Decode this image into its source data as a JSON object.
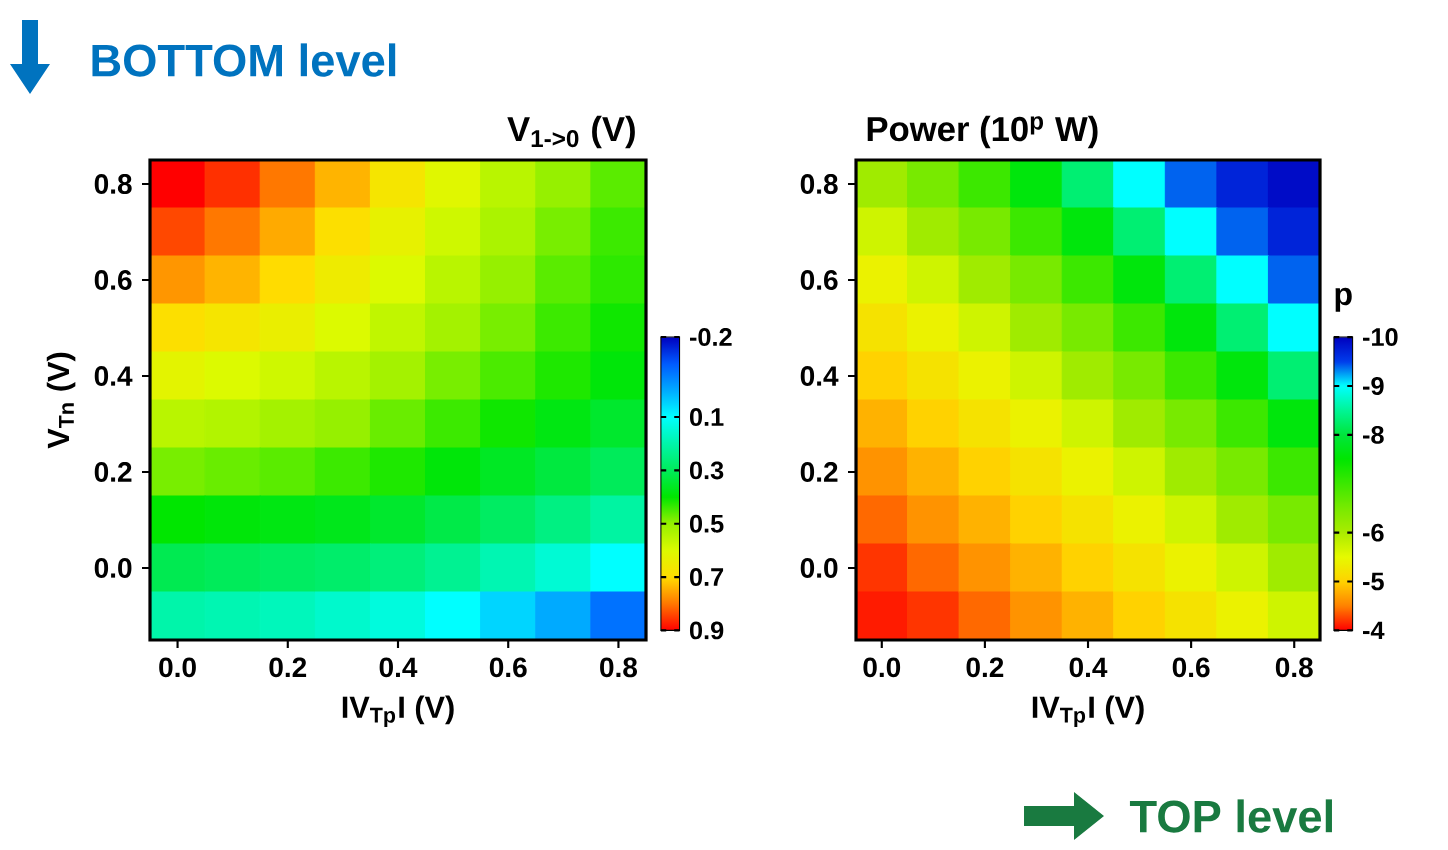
{
  "chart_data": [
    {
      "type": "heatmap",
      "title": "V$_{1->0}$ (V)",
      "xlabel": "IV$_{Tp}$I (V)",
      "ylabel": "V$_{Tn}$ (V)",
      "annotations": [
        "BOTTOM level"
      ],
      "categories": [
        "0.0",
        null,
        "0.2",
        null,
        "0.4",
        null,
        "0.6",
        null,
        "0.8"
      ],
      "y_categories": [
        "0.8",
        null,
        "0.6",
        null,
        "0.4",
        null,
        "0.2",
        null,
        "0.0",
        null
      ],
      "clim": [
        -0.2,
        0.9
      ],
      "cticks": [
        -0.2,
        0.1,
        0.3,
        0.5,
        0.7,
        0.9
      ],
      "cells": [
        [
          0.9,
          0.86,
          0.8,
          0.74,
          0.67,
          0.61,
          0.55,
          0.5,
          0.46
        ],
        [
          0.84,
          0.8,
          0.75,
          0.69,
          0.63,
          0.58,
          0.53,
          0.48,
          0.44
        ],
        [
          0.77,
          0.74,
          0.7,
          0.65,
          0.6,
          0.55,
          0.5,
          0.46,
          0.43
        ],
        [
          0.69,
          0.67,
          0.64,
          0.6,
          0.56,
          0.52,
          0.48,
          0.44,
          0.41
        ],
        [
          0.62,
          0.6,
          0.58,
          0.55,
          0.52,
          0.48,
          0.45,
          0.42,
          0.39
        ],
        [
          0.55,
          0.54,
          0.52,
          0.5,
          0.47,
          0.44,
          0.41,
          0.38,
          0.35
        ],
        [
          0.48,
          0.47,
          0.46,
          0.44,
          0.42,
          0.39,
          0.36,
          0.33,
          0.3
        ],
        [
          0.4,
          0.39,
          0.38,
          0.37,
          0.35,
          0.32,
          0.29,
          0.25,
          0.21
        ],
        [
          0.31,
          0.3,
          0.29,
          0.28,
          0.26,
          0.23,
          0.19,
          0.15,
          0.1
        ],
        [
          0.2,
          0.19,
          0.18,
          0.16,
          0.14,
          0.1,
          0.05,
          0.0,
          -0.07
        ]
      ]
    },
    {
      "type": "heatmap",
      "title": "Power (10$^{p}$ W)",
      "xlabel": "IV$_{Tp}$I (V)",
      "clabel": "p",
      "annotations": [
        "TOP level"
      ],
      "categories": [
        "0.0",
        null,
        "0.2",
        null,
        "0.4",
        null,
        "0.6",
        null,
        "0.8"
      ],
      "y_categories": [
        "0.8",
        null,
        "0.6",
        null,
        "0.4",
        null,
        "0.2",
        null,
        "0.0",
        null
      ],
      "clim": [
        -10,
        -4
      ],
      "cticks": [
        -10,
        -9,
        -8,
        -6,
        -5,
        -4
      ],
      "cells": [
        [
          -6.1,
          -6.5,
          -7.0,
          -7.6,
          -8.3,
          -9.0,
          -9.4,
          -9.7,
          -9.9
        ],
        [
          -5.7,
          -6.1,
          -6.5,
          -7.0,
          -7.6,
          -8.3,
          -9.0,
          -9.4,
          -9.7
        ],
        [
          -5.4,
          -5.7,
          -6.1,
          -6.5,
          -7.0,
          -7.6,
          -8.3,
          -9.0,
          -9.4
        ],
        [
          -5.2,
          -5.4,
          -5.7,
          -6.1,
          -6.5,
          -7.0,
          -7.6,
          -8.3,
          -9.0
        ],
        [
          -5.0,
          -5.2,
          -5.4,
          -5.7,
          -6.1,
          -6.5,
          -7.0,
          -7.6,
          -8.3
        ],
        [
          -4.8,
          -5.0,
          -5.2,
          -5.4,
          -5.7,
          -6.1,
          -6.5,
          -7.0,
          -7.6
        ],
        [
          -4.6,
          -4.8,
          -5.0,
          -5.2,
          -5.4,
          -5.7,
          -6.1,
          -6.5,
          -7.0
        ],
        [
          -4.4,
          -4.6,
          -4.8,
          -5.0,
          -5.2,
          -5.4,
          -5.7,
          -6.1,
          -6.5
        ],
        [
          -4.2,
          -4.4,
          -4.6,
          -4.8,
          -5.0,
          -5.2,
          -5.4,
          -5.7,
          -6.1
        ],
        [
          -4.1,
          -4.2,
          -4.4,
          -4.6,
          -4.8,
          -5.0,
          -5.2,
          -5.4,
          -5.7
        ]
      ]
    }
  ]
}
